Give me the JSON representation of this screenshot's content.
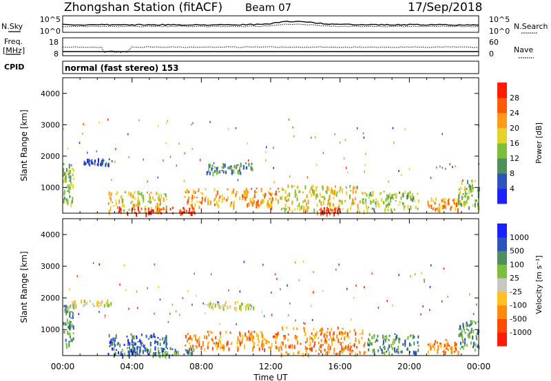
{
  "header": {
    "station": "Zhongshan Station (fitACF)",
    "beam": "Beam 07",
    "date": "17/Sep/2018"
  },
  "noise_panel": {
    "left_label": "N.Sky",
    "left_ticks": [
      "10^5",
      "10^0"
    ],
    "right_label": "N.Search",
    "right_ticks": [
      "10^5",
      "10^0"
    ]
  },
  "freq_panel": {
    "left_label_line1": "Freq.",
    "left_label_line2": "[MHz]",
    "left_ticks": [
      "18",
      "8"
    ],
    "right_label": "Nave",
    "right_ticks": [
      "60",
      "0"
    ]
  },
  "cpid": {
    "label": "CPID",
    "mode": "normal (fast stereo) 153"
  },
  "chart_data": [
    {
      "type": "heatmap",
      "name": "power",
      "ylabel": "Slant Range [km]",
      "xlabel": "Time UT",
      "ylim": [
        180,
        4500
      ],
      "yticks": [
        1000,
        2000,
        3000,
        4000
      ],
      "colorbar": {
        "label": "Power [dB]",
        "ticks": [
          "4",
          "8",
          "12",
          "16",
          "20",
          "24",
          "28"
        ],
        "colors": [
          "#1a23ff",
          "#2d54b8",
          "#4f8f5c",
          "#7cbf3c",
          "#e8d22a",
          "#ff9a1a",
          "#ff5a0a",
          "#ff1a0a"
        ]
      },
      "regions": [
        {
          "t": [
            0.0,
            0.6
          ],
          "r": [
            500,
            1800
          ],
          "level": 3
        },
        {
          "t": [
            1.2,
            2.7
          ],
          "r": [
            1750,
            1950
          ],
          "level": 1
        },
        {
          "t": [
            2.6,
            6.0
          ],
          "r": [
            250,
            900
          ],
          "level": 4
        },
        {
          "t": [
            3.2,
            7.6
          ],
          "r": [
            200,
            400
          ],
          "level": 7
        },
        {
          "t": [
            7.0,
            12.5
          ],
          "r": [
            400,
            1000
          ],
          "level": 5
        },
        {
          "t": [
            8.0,
            11.0
          ],
          "r": [
            1500,
            1800
          ],
          "level": 2
        },
        {
          "t": [
            12.5,
            17.5
          ],
          "r": [
            250,
            1100
          ],
          "level": 4
        },
        {
          "t": [
            14.8,
            16.0
          ],
          "r": [
            200,
            380
          ],
          "level": 7
        },
        {
          "t": [
            17.5,
            20.5
          ],
          "r": [
            300,
            900
          ],
          "level": 3
        },
        {
          "t": [
            21.0,
            22.8
          ],
          "r": [
            300,
            700
          ],
          "level": 5
        },
        {
          "t": [
            22.8,
            24.0
          ],
          "r": [
            400,
            1300
          ],
          "level": 3
        }
      ]
    },
    {
      "type": "heatmap",
      "name": "velocity",
      "ylabel": "Slant Range [km]",
      "xlabel": "Time UT",
      "ylim": [
        180,
        4500
      ],
      "yticks": [
        1000,
        2000,
        3000,
        4000
      ],
      "xticks": [
        "00:00",
        "04:00",
        "08:00",
        "12:00",
        "16:00",
        "20:00",
        "00:00"
      ],
      "colorbar": {
        "label": "Velocity [m s⁻¹]",
        "ticks": [
          "1000",
          "500",
          "100",
          "25",
          "-25",
          "-100",
          "-500",
          "-1000"
        ],
        "colors": [
          "#1a23ff",
          "#2d54b8",
          "#4f8f5c",
          "#7cbf3c",
          "#c8c8c0",
          "#ffc020",
          "#ff8a10",
          "#ff4a0a",
          "#ff1a0a"
        ]
      },
      "regions": [
        {
          "t": [
            0.0,
            0.6
          ],
          "r": [
            500,
            1800
          ],
          "level": 2
        },
        {
          "t": [
            0.3,
            2.8
          ],
          "r": [
            1750,
            1950
          ],
          "level": 4
        },
        {
          "t": [
            2.6,
            6.0
          ],
          "r": [
            250,
            900
          ],
          "level": 1
        },
        {
          "t": [
            3.2,
            7.6
          ],
          "r": [
            200,
            450
          ],
          "level": 2
        },
        {
          "t": [
            7.0,
            12.5
          ],
          "r": [
            400,
            1000
          ],
          "level": 6
        },
        {
          "t": [
            8.0,
            11.0
          ],
          "r": [
            1700,
            1900
          ],
          "level": 4
        },
        {
          "t": [
            12.5,
            17.5
          ],
          "r": [
            250,
            1100
          ],
          "level": 6
        },
        {
          "t": [
            17.5,
            20.5
          ],
          "r": [
            300,
            900
          ],
          "level": 2
        },
        {
          "t": [
            21.0,
            22.8
          ],
          "r": [
            300,
            700
          ],
          "level": 6
        },
        {
          "t": [
            22.8,
            24.0
          ],
          "r": [
            400,
            1300
          ],
          "level": 2
        }
      ]
    }
  ]
}
